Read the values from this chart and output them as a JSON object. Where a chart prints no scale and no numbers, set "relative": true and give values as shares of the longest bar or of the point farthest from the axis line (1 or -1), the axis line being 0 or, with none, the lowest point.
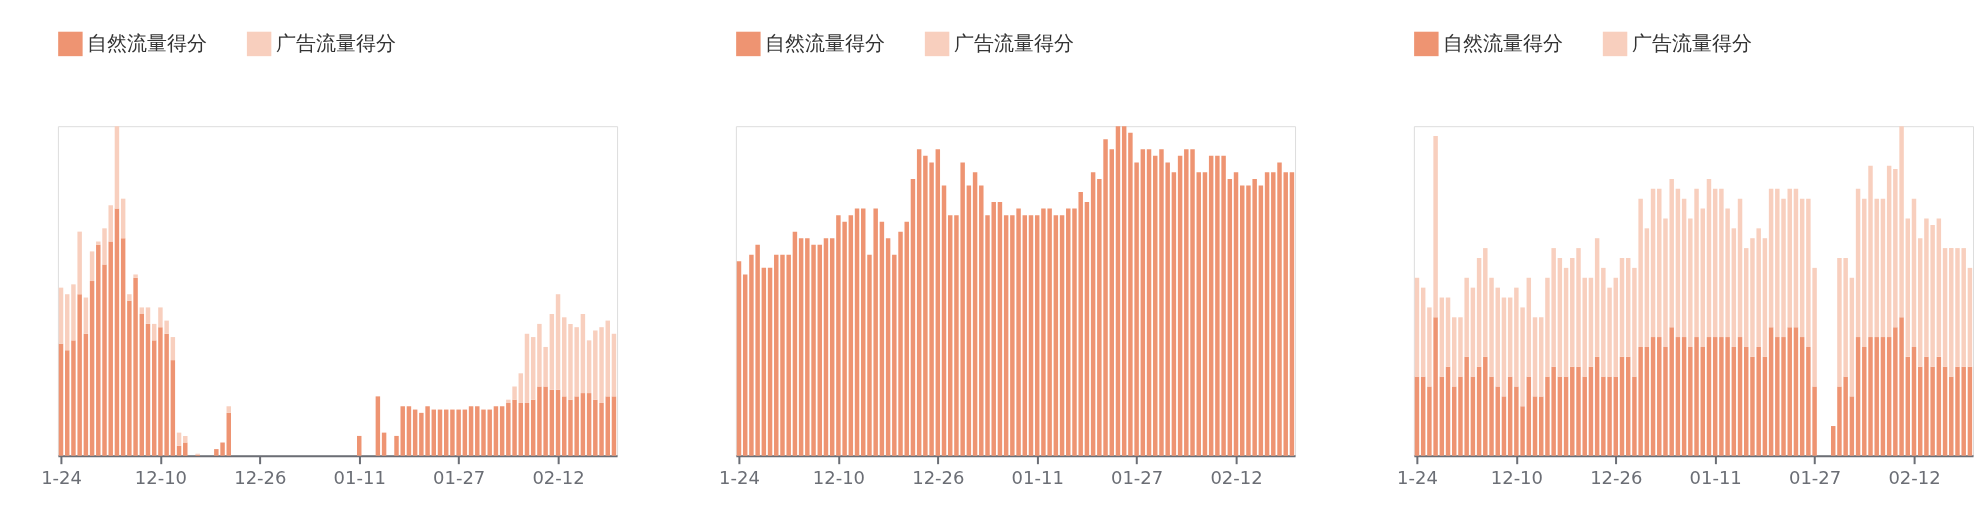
{
  "chart_data": [
    {
      "type": "bar",
      "stacked": true,
      "relative": true,
      "legend": "top left",
      "tick_labels": "x",
      "categories": [
        "1-24",
        null,
        null,
        null,
        null,
        null,
        null,
        null,
        null,
        null,
        null,
        null,
        null,
        null,
        null,
        null,
        "12-10",
        null,
        null,
        null,
        null,
        null,
        null,
        null,
        null,
        null,
        null,
        null,
        null,
        null,
        null,
        null,
        "12-26",
        null,
        null,
        null,
        null,
        null,
        null,
        null,
        null,
        null,
        null,
        null,
        null,
        null,
        null,
        null,
        "01-11",
        null,
        null,
        null,
        null,
        null,
        null,
        null,
        null,
        null,
        null,
        null,
        null,
        null,
        null,
        null,
        "01-27",
        null,
        null,
        null,
        null,
        null,
        null,
        null,
        null,
        null,
        null,
        null,
        null,
        null,
        null,
        null,
        "02-12",
        null,
        null,
        null,
        null,
        null,
        null,
        null,
        null,
        null
      ],
      "series": [
        {
          "name": "自然流量得分",
          "color": "#ee9472",
          "values": [
            0.34,
            0.32,
            0.35,
            0.49,
            0.37,
            0.53,
            0.64,
            0.58,
            0.65,
            0.75,
            0.66,
            0.47,
            0.54,
            0.43,
            0.4,
            0.35,
            0.39,
            0.37,
            0.29,
            0.03,
            0.04,
            null,
            0.003,
            null,
            null,
            0.02,
            0.04,
            0.13,
            null,
            null,
            null,
            null,
            null,
            null,
            null,
            null,
            null,
            null,
            null,
            null,
            null,
            null,
            null,
            null,
            null,
            null,
            null,
            null,
            0.06,
            null,
            null,
            0.18,
            0.07,
            null,
            0.06,
            0.15,
            0.15,
            0.14,
            0.13,
            0.15,
            0.14,
            0.14,
            0.14,
            0.14,
            0.14,
            0.14,
            0.15,
            0.15,
            0.14,
            0.14,
            0.15,
            0.15,
            0.16,
            0.17,
            0.16,
            0.16,
            0.17,
            0.21,
            0.21,
            0.2,
            0.2,
            0.18,
            0.17,
            0.18,
            0.19,
            0.19,
            0.17,
            0.16,
            0.18,
            0.18
          ]
        },
        {
          "name": "广告流量得分",
          "color": "#f8cfbe",
          "values": [
            0.17,
            0.17,
            0.17,
            0.19,
            0.11,
            0.09,
            0.01,
            0.11,
            0.11,
            0.25,
            0.12,
            0.02,
            0.01,
            0.02,
            0.05,
            0.05,
            0.06,
            0.04,
            0.07,
            0.04,
            0.02,
            null,
            0.003,
            null,
            null,
            null,
            null,
            0.02,
            null,
            null,
            null,
            null,
            null,
            null,
            null,
            null,
            null,
            null,
            null,
            null,
            null,
            null,
            null,
            null,
            null,
            null,
            null,
            null,
            null,
            null,
            null,
            null,
            null,
            null,
            null,
            null,
            null,
            null,
            null,
            null,
            null,
            null,
            null,
            null,
            null,
            null,
            null,
            null,
            null,
            null,
            null,
            null,
            0.01,
            0.04,
            0.09,
            0.21,
            0.19,
            0.19,
            0.12,
            0.23,
            0.29,
            0.24,
            0.23,
            0.21,
            0.24,
            0.16,
            0.21,
            0.23,
            0.23,
            0.19
          ]
        }
      ]
    },
    {
      "type": "bar",
      "stacked": true,
      "relative": true,
      "legend": "top left",
      "tick_labels": "x",
      "categories": [
        "1-24",
        null,
        null,
        null,
        null,
        null,
        null,
        null,
        null,
        null,
        null,
        null,
        null,
        null,
        null,
        null,
        "12-10",
        null,
        null,
        null,
        null,
        null,
        null,
        null,
        null,
        null,
        null,
        null,
        null,
        null,
        null,
        null,
        "12-26",
        null,
        null,
        null,
        null,
        null,
        null,
        null,
        null,
        null,
        null,
        null,
        null,
        null,
        null,
        null,
        "01-11",
        null,
        null,
        null,
        null,
        null,
        null,
        null,
        null,
        null,
        null,
        null,
        null,
        null,
        null,
        null,
        "01-27",
        null,
        null,
        null,
        null,
        null,
        null,
        null,
        null,
        null,
        null,
        null,
        null,
        null,
        null,
        null,
        "02-12",
        null,
        null,
        null,
        null,
        null,
        null,
        null,
        null,
        null
      ],
      "series": [
        {
          "name": "自然流量得分",
          "color": "#ee9472",
          "values": [
            0.59,
            0.55,
            0.61,
            0.64,
            0.57,
            0.57,
            0.61,
            0.61,
            0.61,
            0.68,
            0.66,
            0.66,
            0.64,
            0.64,
            0.66,
            0.66,
            0.73,
            0.71,
            0.73,
            0.75,
            0.75,
            0.61,
            0.75,
            0.71,
            0.66,
            0.61,
            0.68,
            0.71,
            0.84,
            0.93,
            0.91,
            0.89,
            0.93,
            0.82,
            0.73,
            0.73,
            0.89,
            0.82,
            0.86,
            0.82,
            0.73,
            0.77,
            0.77,
            0.73,
            0.73,
            0.75,
            0.73,
            0.73,
            0.73,
            0.75,
            0.75,
            0.73,
            0.73,
            0.75,
            0.75,
            0.8,
            0.77,
            0.86,
            0.84,
            0.96,
            0.93,
            1.0,
            1.0,
            0.98,
            0.89,
            0.93,
            0.93,
            0.91,
            0.93,
            0.89,
            0.86,
            0.91,
            0.93,
            0.93,
            0.86,
            0.86,
            0.91,
            0.91,
            0.91,
            0.84,
            0.86,
            0.82,
            0.82,
            0.84,
            0.82,
            0.86,
            0.86,
            0.89,
            0.86,
            0.86
          ]
        },
        {
          "name": "广告流量得分",
          "color": "#f8cfbe",
          "values": [
            null,
            null,
            null,
            null,
            null,
            null,
            null,
            null,
            null,
            null,
            null,
            null,
            null,
            null,
            null,
            null,
            null,
            null,
            null,
            null,
            null,
            null,
            null,
            null,
            null,
            null,
            null,
            null,
            null,
            null,
            null,
            null,
            null,
            null,
            null,
            null,
            null,
            null,
            null,
            null,
            null,
            null,
            null,
            null,
            null,
            null,
            null,
            null,
            null,
            null,
            null,
            null,
            null,
            null,
            null,
            null,
            null,
            null,
            null,
            null,
            null,
            null,
            null,
            null,
            null,
            null,
            null,
            null,
            null,
            null,
            null,
            null,
            null,
            null,
            null,
            null,
            null,
            null,
            null,
            null,
            null,
            null,
            null,
            null,
            null,
            null,
            null,
            null,
            null,
            null
          ]
        }
      ]
    },
    {
      "type": "bar",
      "stacked": true,
      "relative": true,
      "legend": "top left",
      "tick_labels": "x",
      "categories": [
        "1-24",
        null,
        null,
        null,
        null,
        null,
        null,
        null,
        null,
        null,
        null,
        null,
        null,
        null,
        null,
        null,
        "12-10",
        null,
        null,
        null,
        null,
        null,
        null,
        null,
        null,
        null,
        null,
        null,
        null,
        null,
        null,
        null,
        "12-26",
        null,
        null,
        null,
        null,
        null,
        null,
        null,
        null,
        null,
        null,
        null,
        null,
        null,
        null,
        null,
        "01-11",
        null,
        null,
        null,
        null,
        null,
        null,
        null,
        null,
        null,
        null,
        null,
        null,
        null,
        null,
        null,
        "01-27",
        null,
        null,
        null,
        null,
        null,
        null,
        null,
        null,
        null,
        null,
        null,
        null,
        null,
        null,
        null,
        "02-12",
        null,
        null,
        null,
        null,
        null,
        null,
        null,
        null,
        null
      ],
      "series": [
        {
          "name": "自然流量得分",
          "color": "#ee9472",
          "values": [
            0.24,
            0.24,
            0.21,
            0.42,
            0.24,
            0.27,
            0.21,
            0.24,
            0.3,
            0.24,
            0.27,
            0.3,
            0.24,
            0.21,
            0.18,
            0.24,
            0.21,
            0.15,
            0.24,
            0.18,
            0.18,
            0.24,
            0.27,
            0.24,
            0.24,
            0.27,
            0.27,
            0.24,
            0.27,
            0.3,
            0.24,
            0.24,
            0.24,
            0.3,
            0.3,
            0.24,
            0.33,
            0.33,
            0.36,
            0.36,
            0.33,
            0.39,
            0.36,
            0.36,
            0.33,
            0.36,
            0.33,
            0.36,
            0.36,
            0.36,
            0.36,
            0.33,
            0.36,
            0.33,
            0.3,
            0.33,
            0.3,
            0.39,
            0.36,
            0.36,
            0.39,
            0.39,
            0.36,
            0.33,
            0.21,
            null,
            null,
            0.09,
            0.21,
            0.24,
            0.18,
            0.36,
            0.33,
            0.36,
            0.36,
            0.36,
            0.36,
            0.39,
            0.42,
            0.3,
            0.33,
            0.27,
            0.3,
            0.27,
            0.3,
            0.27,
            0.24,
            0.27,
            0.27,
            0.27
          ]
        },
        {
          "name": "广告流量得分",
          "color": "#f8cfbe",
          "values": [
            0.3,
            0.27,
            0.24,
            0.55,
            0.24,
            0.21,
            0.21,
            0.18,
            0.24,
            0.27,
            0.33,
            0.33,
            0.3,
            0.3,
            0.3,
            0.24,
            0.3,
            0.3,
            0.3,
            0.24,
            0.24,
            0.3,
            0.36,
            0.36,
            0.33,
            0.33,
            0.36,
            0.3,
            0.27,
            0.36,
            0.33,
            0.27,
            0.3,
            0.3,
            0.3,
            0.33,
            0.45,
            0.36,
            0.45,
            0.45,
            0.39,
            0.45,
            0.45,
            0.42,
            0.39,
            0.45,
            0.42,
            0.48,
            0.45,
            0.45,
            0.39,
            0.36,
            0.42,
            0.3,
            0.36,
            0.36,
            0.36,
            0.42,
            0.45,
            0.42,
            0.42,
            0.42,
            0.42,
            0.45,
            0.36,
            null,
            null,
            null,
            0.39,
            0.36,
            0.36,
            0.45,
            0.45,
            0.52,
            0.42,
            0.42,
            0.52,
            0.48,
            0.58,
            0.42,
            0.45,
            0.39,
            0.42,
            0.43,
            0.42,
            0.36,
            0.39,
            0.36,
            0.36,
            0.3
          ]
        }
      ]
    }
  ]
}
